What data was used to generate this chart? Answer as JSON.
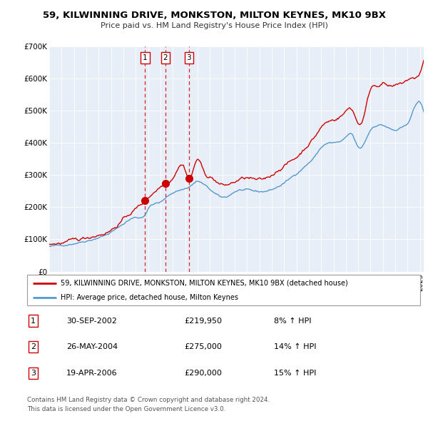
{
  "title1": "59, KILWINNING DRIVE, MONKSTON, MILTON KEYNES, MK10 9BX",
  "title2": "Price paid vs. HM Land Registry's House Price Index (HPI)",
  "legend_line1": "59, KILWINNING DRIVE, MONKSTON, MILTON KEYNES, MK10 9BX (detached house)",
  "legend_line2": "HPI: Average price, detached house, Milton Keynes",
  "transactions": [
    {
      "num": 1,
      "date": "30-SEP-2002",
      "price": 219950,
      "year": 2002.75,
      "pct": "8%",
      "dir": "↑"
    },
    {
      "num": 2,
      "date": "26-MAY-2004",
      "price": 275000,
      "year": 2004.4,
      "pct": "14%",
      "dir": "↑"
    },
    {
      "num": 3,
      "date": "19-APR-2006",
      "price": 290000,
      "year": 2006.3,
      "pct": "15%",
      "dir": "↑"
    }
  ],
  "footer1": "Contains HM Land Registry data © Crown copyright and database right 2024.",
  "footer2": "This data is licensed under the Open Government Licence v3.0.",
  "red_color": "#cc0000",
  "blue_color": "#5599cc",
  "background_color": "#e8eef8",
  "ylim": [
    0,
    700000
  ],
  "xlim_start": 1995.0,
  "xlim_end": 2025.3,
  "hpi_control_years": [
    1995,
    1996,
    1997,
    1998,
    1999,
    2000,
    2001,
    2002,
    2002.75,
    2003,
    2004,
    2004.5,
    2005,
    2006,
    2006.5,
    2007,
    2007.5,
    2008,
    2009,
    2009.5,
    2010,
    2011,
    2012,
    2013,
    2014,
    2015,
    2016,
    2016.5,
    2017,
    2018,
    2019,
    2019.5,
    2020,
    2020.5,
    2021,
    2021.5,
    2022,
    2022.5,
    2023,
    2023.5,
    2024,
    2024.5,
    2025.2
  ],
  "hpi_control_vals": [
    78000,
    82000,
    88000,
    96000,
    106000,
    122000,
    148000,
    168000,
    178000,
    195000,
    215000,
    230000,
    245000,
    258000,
    268000,
    280000,
    270000,
    255000,
    230000,
    235000,
    248000,
    252000,
    248000,
    255000,
    275000,
    305000,
    338000,
    358000,
    385000,
    400000,
    415000,
    425000,
    385000,
    400000,
    440000,
    455000,
    455000,
    445000,
    438000,
    445000,
    460000,
    505000,
    510000
  ],
  "prop_control_years": [
    1995,
    1996,
    1997,
    1998,
    1999,
    2000,
    2001,
    2002,
    2002.75,
    2003,
    2004,
    2004.4,
    2005,
    2005.5,
    2006,
    2006.3,
    2007,
    2007.5,
    2008,
    2009,
    2009.5,
    2010,
    2011,
    2012,
    2013,
    2014,
    2015,
    2016,
    2016.5,
    2017,
    2018,
    2019,
    2019.5,
    2020,
    2020.5,
    2021,
    2021.5,
    2022,
    2022.5,
    2023,
    2023.5,
    2024,
    2024.5,
    2025.1
  ],
  "prop_control_vals": [
    85000,
    89000,
    95000,
    105000,
    116000,
    130000,
    162000,
    195000,
    219950,
    230000,
    265000,
    275000,
    295000,
    330000,
    320000,
    290000,
    350000,
    310000,
    295000,
    268000,
    270000,
    278000,
    290000,
    282000,
    300000,
    330000,
    355000,
    398000,
    420000,
    448000,
    472000,
    498000,
    505000,
    462000,
    490000,
    568000,
    580000,
    588000,
    575000,
    575000,
    582000,
    595000,
    598000,
    628000
  ]
}
